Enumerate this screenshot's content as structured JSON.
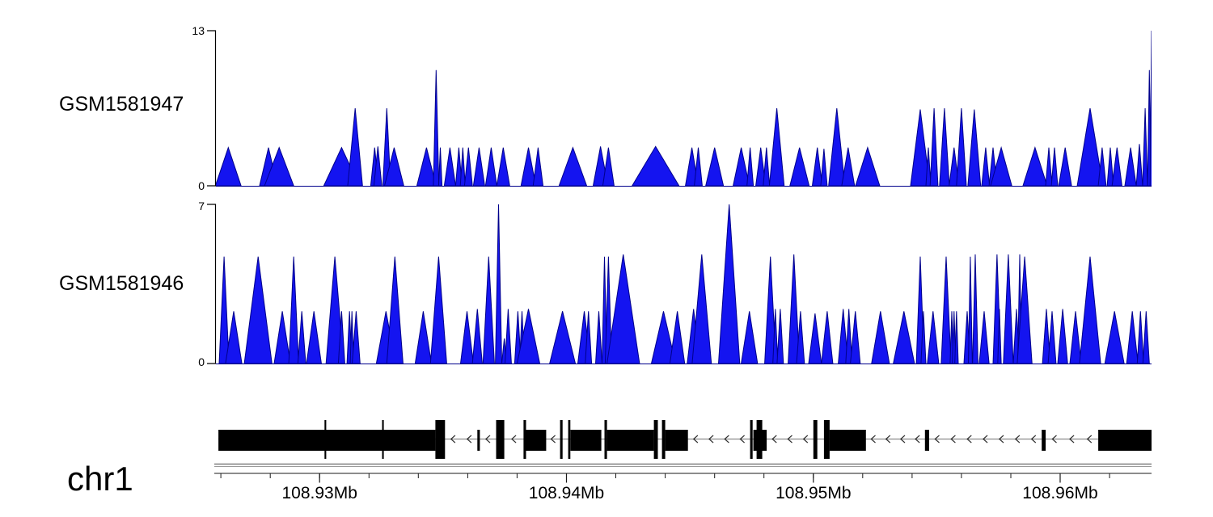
{
  "figure": {
    "kind": "genome coverage browser view",
    "background": "#ffffff"
  },
  "chart_data": {
    "type": "area",
    "subtype": "genome-browser-coverage",
    "x_unit": "Mb",
    "x_range_mb": [
      108.9258,
      108.9637
    ],
    "axis": {
      "tick_labels": [
        "108.93Mb",
        "108.94Mb",
        "108.95Mb",
        "108.96Mb"
      ],
      "tick_positions_mb": [
        108.93,
        108.94,
        108.95,
        108.96
      ],
      "minor_tick_step_mb": 0.002,
      "minor_tick_start_mb": 108.926,
      "minor_tick_count": 19,
      "range_line_color": "#7d7d7d",
      "axis_line_color": "#1a1a1a"
    },
    "tracks": [
      {
        "name": "GSM1581947",
        "ylim": [
          0,
          13
        ],
        "ytick_top": "13",
        "ytick_bottom": "0",
        "fill": "#1414f0",
        "stroke": "#00008b",
        "peaks": [
          [
            108.9263,
            3.2,
            0.00052
          ],
          [
            108.92793,
            3.2,
            0.00036
          ],
          [
            108.92836,
            3.2,
            0.00059
          ],
          [
            108.93089,
            3.2,
            0.00072
          ],
          [
            108.93144,
            6.5,
            0.0003
          ],
          [
            108.93223,
            3.2,
            0.00016
          ],
          [
            108.93236,
            3.3,
            0.00016
          ],
          [
            108.93272,
            6.5,
            0.00016
          ],
          [
            108.93302,
            3.2,
            0.00039
          ],
          [
            108.93433,
            3.2,
            0.00039
          ],
          [
            108.93472,
            9.7,
            0.00011
          ],
          [
            108.93489,
            3.2,
            7e-05
          ],
          [
            108.93528,
            3.2,
            0.00023
          ],
          [
            108.93564,
            3.2,
            0.00013
          ],
          [
            108.9358,
            3.2,
            0.0001
          ],
          [
            108.93603,
            3.2,
            0.00016
          ],
          [
            108.93646,
            3.2,
            0.00023
          ],
          [
            108.93695,
            3.2,
            0.00023
          ],
          [
            108.93744,
            3.2,
            0.00026
          ],
          [
            108.93846,
            3.2,
            0.0003
          ],
          [
            108.93885,
            3.2,
            0.0002
          ],
          [
            108.94026,
            3.2,
            0.00056
          ],
          [
            108.94138,
            3.3,
            0.0003
          ],
          [
            108.9417,
            3.2,
            0.00023
          ],
          [
            108.94361,
            3.3,
            0.00095
          ],
          [
            108.94508,
            3.2,
            0.00026
          ],
          [
            108.94534,
            3.2,
            0.00016
          ],
          [
            108.946,
            3.2,
            0.00036
          ],
          [
            108.94708,
            3.2,
            0.00033
          ],
          [
            108.94744,
            3.2,
            0.00013
          ],
          [
            108.94787,
            3.2,
            0.0002
          ],
          [
            108.9481,
            3.2,
            0.00013
          ],
          [
            108.94852,
            6.5,
            0.0003
          ],
          [
            108.94944,
            3.2,
            0.00039
          ],
          [
            108.95016,
            3.2,
            0.0002
          ],
          [
            108.95043,
            3.1,
            0.00013
          ],
          [
            108.95095,
            6.5,
            0.00033
          ],
          [
            108.95141,
            3.2,
            0.00026
          ],
          [
            108.9522,
            3.2,
            0.00049
          ],
          [
            108.95433,
            6.4,
            0.00039
          ],
          [
            108.95466,
            3.2,
            0.0001
          ],
          [
            108.95489,
            6.5,
            0.00016
          ],
          [
            108.95531,
            6.5,
            0.0002
          ],
          [
            108.9557,
            3.2,
            0.0002
          ],
          [
            108.956,
            6.5,
            0.0002
          ],
          [
            108.95652,
            6.4,
            0.00026
          ],
          [
            108.95698,
            3.2,
            0.00016
          ],
          [
            108.95728,
            3.2,
            0.00016
          ],
          [
            108.95761,
            3.2,
            0.00043
          ],
          [
            108.95898,
            3.2,
            0.00049
          ],
          [
            108.95954,
            3.2,
            0.00013
          ],
          [
            108.95977,
            3.2,
            0.00013
          ],
          [
            108.9602,
            3.2,
            0.00026
          ],
          [
            108.96121,
            6.5,
            0.00052
          ],
          [
            108.9617,
            3.2,
            0.00016
          ],
          [
            108.96203,
            3.2,
            0.00013
          ],
          [
            108.9623,
            3.2,
            0.0002
          ],
          [
            108.96285,
            3.2,
            0.00023
          ],
          [
            108.96321,
            3.5,
            0.00013
          ],
          [
            108.96344,
            6.5,
            0.0001
          ],
          [
            108.96361,
            9.7,
            7e-05
          ],
          [
            108.9637,
            13.0,
            6e-05
          ]
        ]
      },
      {
        "name": "GSM1581946",
        "ylim": [
          0,
          7
        ],
        "ytick_top": "7",
        "ytick_bottom": "0",
        "fill": "#1414f0",
        "stroke": "#00008b",
        "peaks": [
          [
            108.92613,
            4.7,
            0.0002
          ],
          [
            108.92652,
            2.3,
            0.00033
          ],
          [
            108.92751,
            4.7,
            0.00056
          ],
          [
            108.92849,
            2.3,
            0.00033
          ],
          [
            108.92895,
            4.7,
            0.0002
          ],
          [
            108.92928,
            2.3,
            0.00016
          ],
          [
            108.92977,
            2.3,
            0.0003
          ],
          [
            108.93062,
            4.7,
            0.00036
          ],
          [
            108.93089,
            2.3,
            0.00013
          ],
          [
            108.93121,
            2.3,
            0.0001
          ],
          [
            108.93131,
            2.3,
            7e-05
          ],
          [
            108.93148,
            2.3,
            0.00016
          ],
          [
            108.93269,
            2.3,
            0.00039
          ],
          [
            108.93305,
            4.7,
            0.00033
          ],
          [
            108.9342,
            2.3,
            0.00033
          ],
          [
            108.93482,
            4.7,
            0.00033
          ],
          [
            108.93597,
            2.3,
            0.00026
          ],
          [
            108.93639,
            2.4,
            0.0002
          ],
          [
            108.93685,
            4.7,
            0.00023
          ],
          [
            108.93725,
            7.0,
            0.00013
          ],
          [
            108.93748,
            1.1,
            0.0001
          ],
          [
            108.93764,
            2.4,
            0.00013
          ],
          [
            108.93803,
            2.3,
            0.00013
          ],
          [
            108.9382,
            2.3,
            0.0001
          ],
          [
            108.93846,
            2.4,
            0.00046
          ],
          [
            108.93984,
            2.3,
            0.00052
          ],
          [
            108.94072,
            2.3,
            0.00026
          ],
          [
            108.94089,
            2.3,
            0.00013
          ],
          [
            108.94131,
            2.3,
            0.00013
          ],
          [
            108.94154,
            4.7,
            0.0001
          ],
          [
            108.9417,
            4.7,
            0.00013
          ],
          [
            108.9423,
            4.8,
            0.00066
          ],
          [
            108.94393,
            2.3,
            0.00049
          ],
          [
            108.94449,
            2.3,
            0.0003
          ],
          [
            108.94515,
            2.4,
            0.00026
          ],
          [
            108.94548,
            4.8,
            0.00039
          ],
          [
            108.94659,
            7.0,
            0.00043
          ],
          [
            108.94741,
            2.3,
            0.00033
          ],
          [
            108.94826,
            4.7,
            0.00023
          ],
          [
            108.94846,
            2.4,
            0.0001
          ],
          [
            108.94866,
            2.4,
            0.00013
          ],
          [
            108.94921,
            4.8,
            0.00023
          ],
          [
            108.94948,
            2.3,
            0.00016
          ],
          [
            108.95007,
            2.2,
            0.00026
          ],
          [
            108.95056,
            2.3,
            0.00023
          ],
          [
            108.95121,
            2.4,
            0.0002
          ],
          [
            108.95144,
            2.4,
            0.00013
          ],
          [
            108.9517,
            2.3,
            0.0002
          ],
          [
            108.95272,
            2.3,
            0.00036
          ],
          [
            108.95367,
            2.3,
            0.00043
          ],
          [
            108.95433,
            4.7,
            0.00016
          ],
          [
            108.95446,
            2.3,
            0.0001
          ],
          [
            108.95485,
            2.3,
            0.00023
          ],
          [
            108.95538,
            4.7,
            0.0002
          ],
          [
            108.95561,
            2.3,
            7e-05
          ],
          [
            108.9557,
            2.3,
            7e-05
          ],
          [
            108.9558,
            2.3,
            7e-05
          ],
          [
            108.95623,
            2.3,
            0.00013
          ],
          [
            108.95636,
            4.7,
            8e-05
          ],
          [
            108.95656,
            4.8,
            0.00011
          ],
          [
            108.95692,
            2.3,
            0.0002
          ],
          [
            108.95744,
            4.8,
            0.00016
          ],
          [
            108.95754,
            2.4,
            7e-05
          ],
          [
            108.9579,
            4.8,
            0.0002
          ],
          [
            108.95823,
            2.4,
            0.00013
          ],
          [
            108.95836,
            4.8,
            8e-05
          ],
          [
            108.95856,
            4.7,
            0.0003
          ],
          [
            108.95944,
            2.4,
            0.00016
          ],
          [
            108.95967,
            2.3,
            0.00016
          ],
          [
            108.9601,
            2.4,
            0.0002
          ],
          [
            108.96062,
            2.3,
            0.00023
          ],
          [
            108.96121,
            4.7,
            0.00043
          ],
          [
            108.9622,
            2.3,
            0.00039
          ],
          [
            108.96292,
            2.3,
            0.00023
          ],
          [
            108.96325,
            2.3,
            0.00013
          ],
          [
            108.96348,
            2.3,
            0.00013
          ]
        ]
      }
    ],
    "gene_model": {
      "chromosome": "chr1",
      "strand": "-",
      "arrow_direction": "left",
      "exon_color": "#000000",
      "intron_line_color": "#8b8b8b",
      "arrow_color": "#2b2b2b",
      "elements": [
        {
          "start": 108.9259,
          "end": 108.93469,
          "type": "utr"
        },
        {
          "start": 108.9302,
          "end": 108.93027,
          "type": "cds"
        },
        {
          "start": 108.93253,
          "end": 108.9326,
          "type": "cds"
        },
        {
          "start": 108.93469,
          "end": 108.93508,
          "type": "cds"
        },
        {
          "start": 108.93639,
          "end": 108.93649,
          "type": "utr"
        },
        {
          "start": 108.93715,
          "end": 108.93748,
          "type": "cds"
        },
        {
          "start": 108.93826,
          "end": 108.93836,
          "type": "cds"
        },
        {
          "start": 108.93836,
          "end": 108.93918,
          "type": "utr"
        },
        {
          "start": 108.93974,
          "end": 108.93984,
          "type": "cds"
        },
        {
          "start": 108.94007,
          "end": 108.94016,
          "type": "cds"
        },
        {
          "start": 108.94016,
          "end": 108.94141,
          "type": "utr"
        },
        {
          "start": 108.94154,
          "end": 108.94164,
          "type": "cds"
        },
        {
          "start": 108.94164,
          "end": 108.94354,
          "type": "utr"
        },
        {
          "start": 108.94354,
          "end": 108.9437,
          "type": "cds"
        },
        {
          "start": 108.94387,
          "end": 108.944,
          "type": "cds"
        },
        {
          "start": 108.944,
          "end": 108.94492,
          "type": "utr"
        },
        {
          "start": 108.94744,
          "end": 108.94754,
          "type": "cds"
        },
        {
          "start": 108.94757,
          "end": 108.94811,
          "type": "utr"
        },
        {
          "start": 108.9477,
          "end": 108.94793,
          "type": "cds"
        },
        {
          "start": 108.95,
          "end": 108.95016,
          "type": "cds"
        },
        {
          "start": 108.95043,
          "end": 108.95066,
          "type": "cds"
        },
        {
          "start": 108.95066,
          "end": 108.95213,
          "type": "utr"
        },
        {
          "start": 108.95452,
          "end": 108.95469,
          "type": "utr"
        },
        {
          "start": 108.95925,
          "end": 108.95941,
          "type": "utr"
        },
        {
          "start": 108.96154,
          "end": 108.9637,
          "type": "utr"
        }
      ]
    }
  }
}
